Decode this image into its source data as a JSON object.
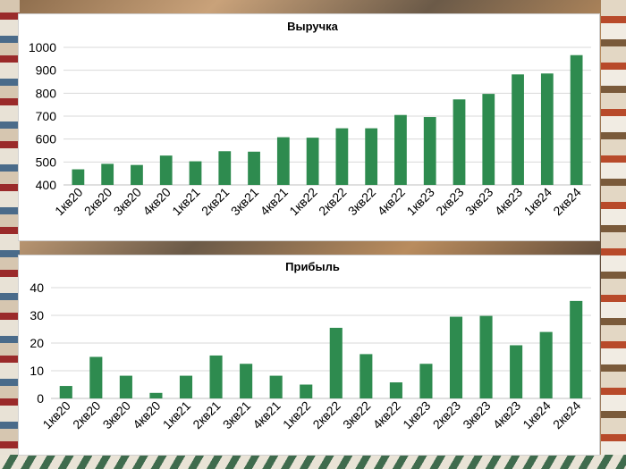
{
  "chart_data": [
    {
      "type": "bar",
      "title": "Выручка",
      "xlabel": "",
      "ylabel": "",
      "categories": [
        "1кв20",
        "2кв20",
        "3кв20",
        "4кв20",
        "1кв21",
        "2кв21",
        "3кв21",
        "4кв21",
        "1кв22",
        "2кв22",
        "3кв22",
        "4кв22",
        "1кв23",
        "2кв23",
        "3кв23",
        "4кв23",
        "1кв24",
        "2кв24"
      ],
      "values": [
        468,
        492,
        487,
        528,
        503,
        547,
        545,
        608,
        606,
        647,
        647,
        705,
        696,
        773,
        797,
        882,
        886,
        966
      ],
      "ylim": [
        400,
        1000
      ],
      "yticks": [
        400,
        500,
        600,
        700,
        800,
        900,
        1000
      ],
      "grid": true,
      "bar_color": "#2e8b4f"
    },
    {
      "type": "bar",
      "title": "Прибыль",
      "xlabel": "",
      "ylabel": "",
      "categories": [
        "1кв20",
        "2кв20",
        "3кв20",
        "4кв20",
        "1кв21",
        "2кв21",
        "3кв21",
        "4кв21",
        "1кв22",
        "2кв22",
        "3кв22",
        "4кв22",
        "1кв23",
        "2кв23",
        "3кв23",
        "4кв23",
        "1кв24",
        "2кв24"
      ],
      "values": [
        4.5,
        15,
        8.2,
        2,
        8.2,
        15.5,
        12.5,
        8.2,
        5,
        25.5,
        16,
        5.8,
        12.5,
        29.5,
        29.8,
        19.2,
        24,
        35.2
      ],
      "ylim": [
        0,
        40
      ],
      "yticks": [
        0,
        10,
        20,
        30,
        40
      ],
      "grid": true,
      "bar_color": "#2e8b4f"
    }
  ]
}
